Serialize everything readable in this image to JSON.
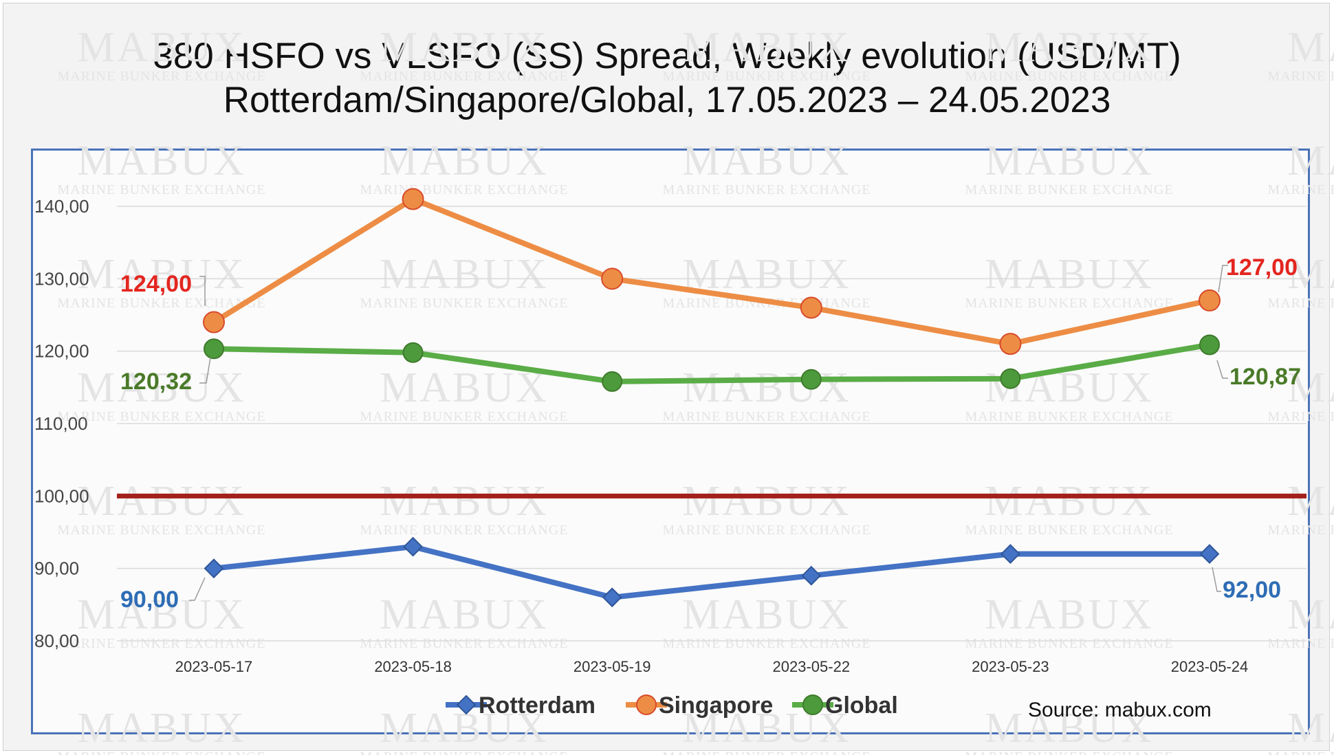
{
  "title_line1": "380 HSFO vs VLSFO (SS) Spread, Weekly evolution (USD/MT)",
  "title_line2": "Rotterdam/Singapore/Global, 17.05.2023 – 24.05.2023",
  "watermark": {
    "big": "MABUX",
    "small": "MARINE BUNKER EXCHANGE"
  },
  "source": "Source: mabux.com",
  "colors": {
    "rotterdam": "#4472c4",
    "singapore": "#ed8d45",
    "global": "#5aac47",
    "reference": "#a3201b",
    "rotterdam_label": "#2e6db5",
    "singapore_label": "#e3261f",
    "global_label": "#4a7a28"
  },
  "chart_data": {
    "type": "line",
    "categories": [
      "2023-05-17",
      "2023-05-18",
      "2023-05-19",
      "2023-05-22",
      "2023-05-23",
      "2023-05-24"
    ],
    "series": [
      {
        "name": "Rotterdam",
        "values": [
          90.0,
          93.0,
          86.0,
          89.0,
          92.0,
          92.0
        ],
        "marker": "diamond"
      },
      {
        "name": "Singapore",
        "values": [
          124.0,
          141.0,
          130.0,
          126.0,
          121.0,
          127.0
        ],
        "marker": "circle"
      },
      {
        "name": "Global",
        "values": [
          120.32,
          119.8,
          115.8,
          116.1,
          116.2,
          120.87
        ],
        "marker": "circle"
      }
    ],
    "data_labels": [
      {
        "series": "Singapore",
        "index": 0,
        "text": "124,00"
      },
      {
        "series": "Singapore",
        "index": 5,
        "text": "127,00"
      },
      {
        "series": "Global",
        "index": 0,
        "text": "120,32"
      },
      {
        "series": "Global",
        "index": 5,
        "text": "120,87"
      },
      {
        "series": "Rotterdam",
        "index": 0,
        "text": "90,00"
      },
      {
        "series": "Rotterdam",
        "index": 5,
        "text": "92,00"
      }
    ],
    "reference_line": 100,
    "yticks": [
      "80,00",
      "90,00",
      "100,00",
      "110,00",
      "120,00",
      "130,00",
      "140,00"
    ],
    "ylim": [
      80,
      140
    ],
    "grid": true,
    "legend": {
      "position": "bottom",
      "entries": [
        "Rotterdam",
        "Singapore",
        "Global"
      ]
    }
  }
}
